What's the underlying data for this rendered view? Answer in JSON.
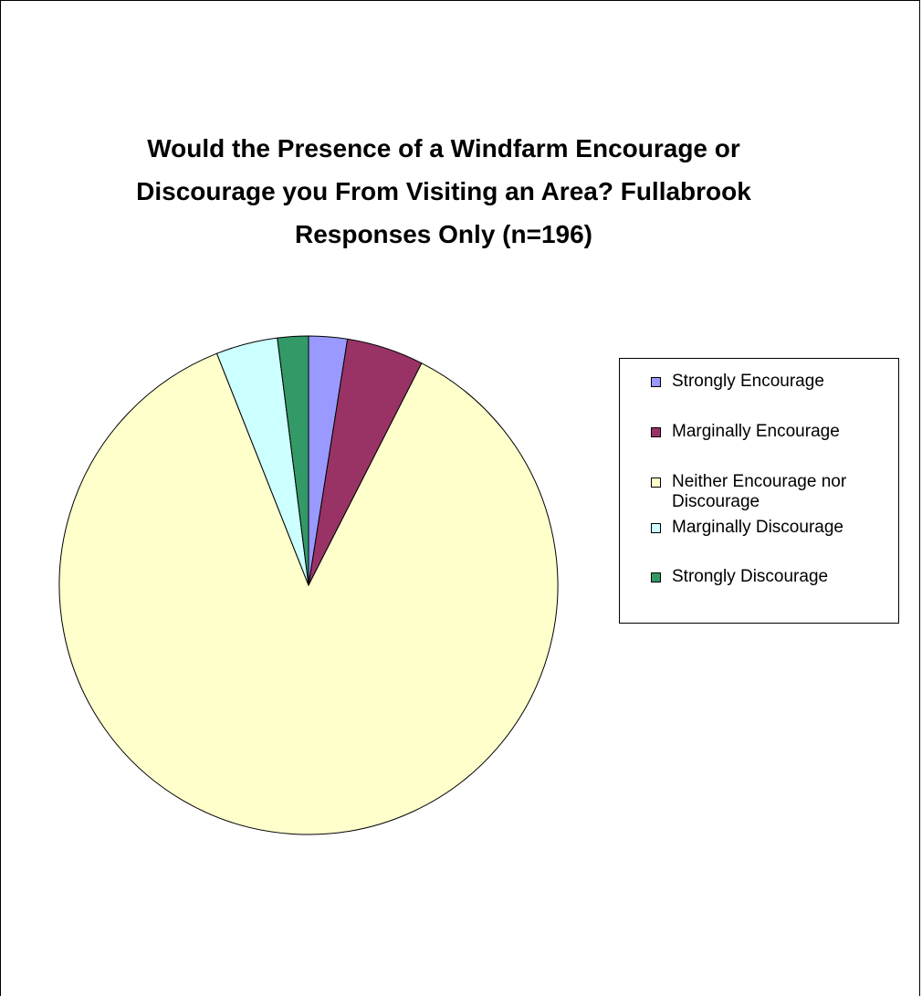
{
  "chart_data": {
    "type": "pie",
    "title": [
      "Would the Presence of a Windfarm Encourage or",
      "Discourage you From Visiting an Area? Fullabrook",
      "Responses Only (n=196)"
    ],
    "categories": [
      "Strongly Encourage",
      "Marginally Encourage",
      "Neither Encourage nor Discourage",
      "Marginally Discourage",
      "Strongly Discourage"
    ],
    "values": [
      2.5,
      5.0,
      86.5,
      4.0,
      2.0
    ],
    "colors": [
      "#9999FF",
      "#993366",
      "#FFFFCC",
      "#CCFFFF",
      "#339966"
    ],
    "legend": {
      "position": "right",
      "items": [
        {
          "label": "Strongly Encourage",
          "color": "#9999FF"
        },
        {
          "label": "Marginally Encourage",
          "color": "#993366"
        },
        {
          "label": "Neither Encourage nor Discourage",
          "color": "#FFFFCC"
        },
        {
          "label": "Marginally Discourage",
          "color": "#CCFFFF"
        },
        {
          "label": "Strongly Discourage",
          "color": "#339966"
        }
      ]
    }
  }
}
